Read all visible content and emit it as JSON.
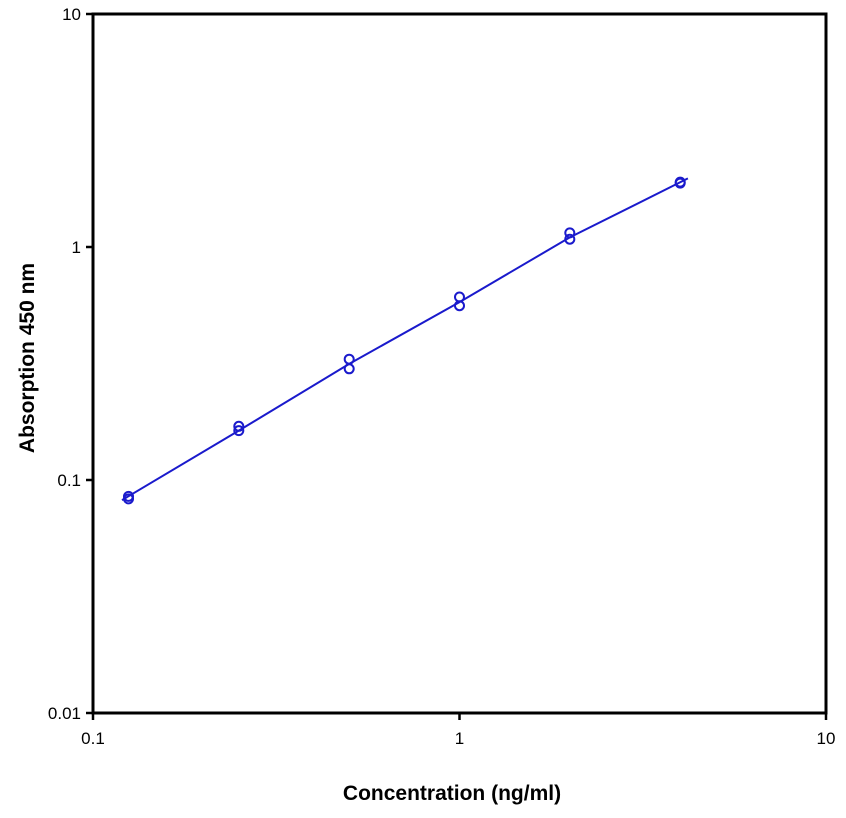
{
  "chart_data": {
    "type": "scatter",
    "title": "",
    "xlabel": "Concentration (ng/ml)",
    "ylabel": "Absorption 450 nm",
    "x_scale": "log",
    "y_scale": "log",
    "xlim": [
      0.1,
      10
    ],
    "ylim": [
      0.01,
      10
    ],
    "x_ticks": [
      {
        "value": 0.1,
        "label": "0.1"
      },
      {
        "value": 1,
        "label": "1"
      },
      {
        "value": 10,
        "label": "10"
      }
    ],
    "y_ticks": [
      {
        "value": 0.01,
        "label": "0.01"
      },
      {
        "value": 0.1,
        "label": "0.1"
      },
      {
        "value": 1,
        "label": "1"
      },
      {
        "value": 10,
        "label": "10"
      }
    ],
    "grid": false,
    "legend": "none",
    "series": [
      {
        "marker": "open-circle",
        "color": "#1a1acc",
        "points": [
          {
            "x": 0.125,
            "y": 0.083
          },
          {
            "x": 0.125,
            "y": 0.085
          },
          {
            "x": 0.25,
            "y": 0.163
          },
          {
            "x": 0.25,
            "y": 0.17
          },
          {
            "x": 0.5,
            "y": 0.3
          },
          {
            "x": 0.5,
            "y": 0.33
          },
          {
            "x": 1,
            "y": 0.56
          },
          {
            "x": 1,
            "y": 0.61
          },
          {
            "x": 2,
            "y": 1.08
          },
          {
            "x": 2,
            "y": 1.15
          },
          {
            "x": 4,
            "y": 1.88
          },
          {
            "x": 4,
            "y": 1.9
          }
        ]
      }
    ],
    "fit_curve": {
      "color": "#1a1acc",
      "points": [
        {
          "x": 0.12,
          "y": 0.082
        },
        {
          "x": 0.25,
          "y": 0.163
        },
        {
          "x": 0.5,
          "y": 0.315
        },
        {
          "x": 1,
          "y": 0.58
        },
        {
          "x": 2,
          "y": 1.1
        },
        {
          "x": 4.2,
          "y": 1.97
        }
      ]
    }
  }
}
